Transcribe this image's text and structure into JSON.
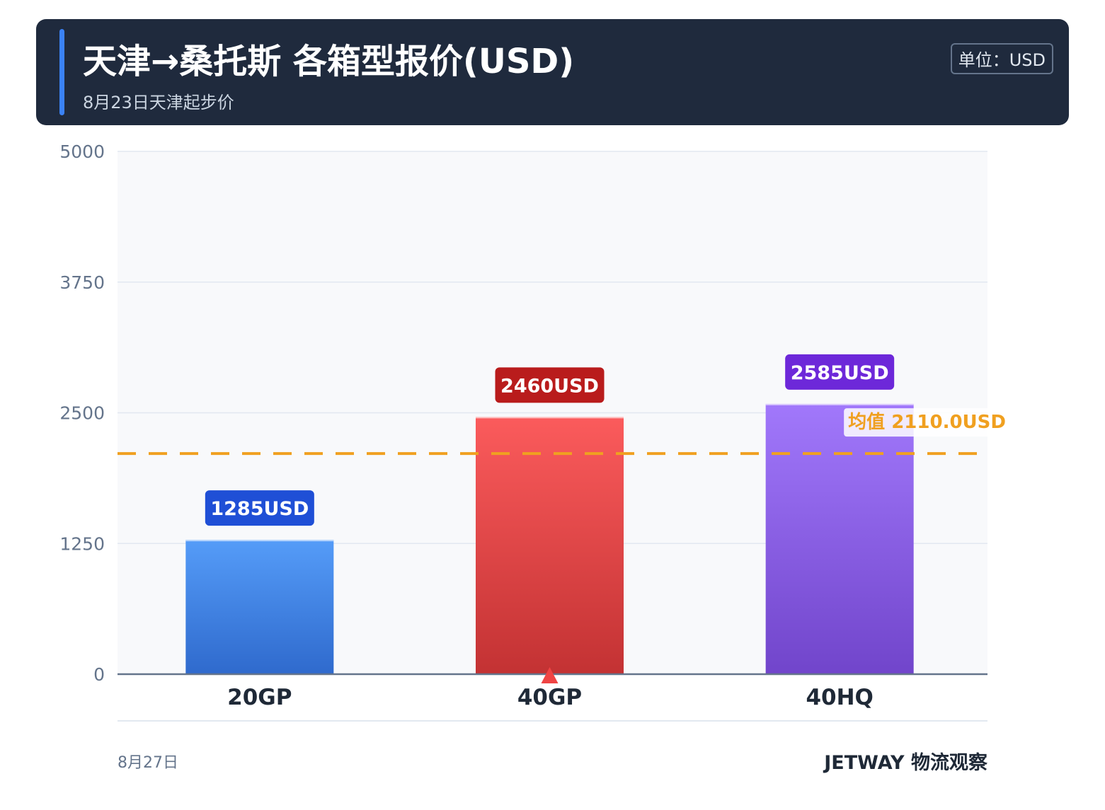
{
  "header": {
    "title": "天津→桑托斯 各箱型报价(USD)",
    "subtitle": "8月23日天津起步价",
    "unit": "单位：USD"
  },
  "footer": {
    "date": "8月27日",
    "brand": "JETWAY 物流观察"
  },
  "chart_data": {
    "type": "bar",
    "title": "天津→桑托斯 各箱型报价(USD)",
    "categories": [
      "20GP",
      "40GP",
      "40HQ"
    ],
    "values": [
      1285,
      2460,
      2585
    ],
    "value_labels": [
      "1285USD",
      "2460USD",
      "2585USD"
    ],
    "yticks": [
      "0",
      "1250",
      "2500",
      "3750",
      "5000"
    ],
    "ylim": [
      0,
      5000
    ],
    "xlabel": "",
    "ylabel": "",
    "grid": true,
    "average": {
      "value": 2110,
      "label": "均值 2110.0USD"
    },
    "colors": {
      "bars_top": [
        "#559cf8",
        "#fb5b5c",
        "#a178fb"
      ],
      "bars_bottom": [
        "#2f6acd",
        "#c33233",
        "#7145cb"
      ],
      "labels": [
        "#1f4fd6",
        "#b91c1c",
        "#6d28d9"
      ],
      "average": "#f0a020",
      "marker": "#ef4444"
    },
    "highlight_index": 1
  }
}
